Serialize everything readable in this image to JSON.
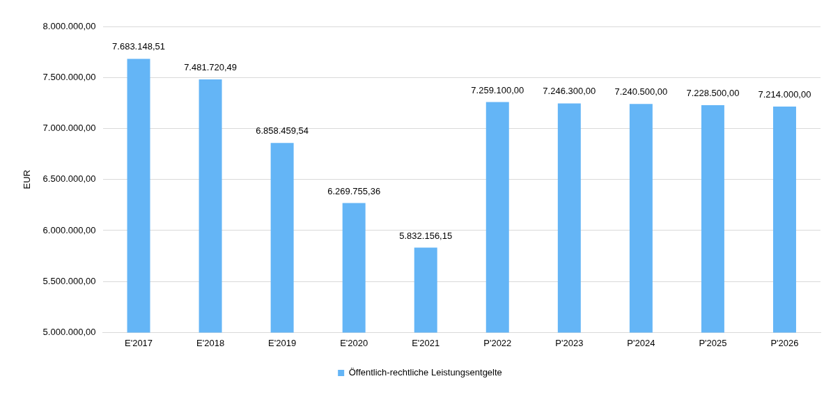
{
  "chart_data": {
    "type": "bar",
    "ylabel": "EUR",
    "categories": [
      "E'2017",
      "E'2018",
      "E'2019",
      "E'2020",
      "E'2021",
      "P'2022",
      "P'2023",
      "P'2024",
      "P'2025",
      "P'2026"
    ],
    "series": [
      {
        "name": "Öffentlich-rechtliche Leistungsentgelte",
        "color": "#64b5f6",
        "values": [
          7683148.51,
          7481720.49,
          6858459.54,
          6269755.36,
          5832156.15,
          7259100,
          7246300,
          7240500,
          7228500,
          7214000
        ]
      }
    ],
    "value_labels": [
      "7.683.148,51",
      "7.481.720,49",
      "6.858.459,54",
      "6.269.755,36",
      "5.832.156,15",
      "7.259.100,00",
      "7.246.300,00",
      "7.240.500,00",
      "7.228.500,00",
      "7.214.000,00"
    ],
    "ylim": [
      5000000,
      8000000
    ],
    "yticks": [
      {
        "value": 5000000,
        "label": "5.000.000,00"
      },
      {
        "value": 5500000,
        "label": "5.500.000,00"
      },
      {
        "value": 6000000,
        "label": "6.000.000,00"
      },
      {
        "value": 6500000,
        "label": "6.500.000,00"
      },
      {
        "value": 7000000,
        "label": "7.000.000,00"
      },
      {
        "value": 7500000,
        "label": "7.500.000,00"
      },
      {
        "value": 8000000,
        "label": "8.000.000,00"
      }
    ],
    "grid": "y",
    "legend": "bottom"
  }
}
